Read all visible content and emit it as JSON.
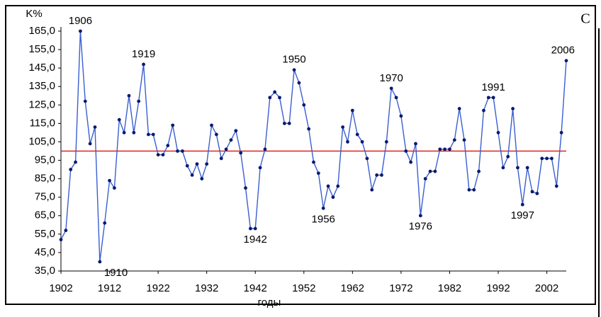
{
  "chart_data": {
    "type": "line",
    "panel_label": "C",
    "y_label": "K%",
    "x_label": "годы",
    "color": "#3a5fd0",
    "marker_color": "#0a1a6e",
    "reference_line": {
      "value": 100,
      "color": "#e02020"
    },
    "x": [
      1902,
      1903,
      1904,
      1905,
      1906,
      1907,
      1908,
      1909,
      1910,
      1911,
      1912,
      1913,
      1914,
      1915,
      1916,
      1917,
      1918,
      1919,
      1920,
      1921,
      1922,
      1923,
      1924,
      1925,
      1926,
      1927,
      1928,
      1929,
      1930,
      1931,
      1932,
      1933,
      1934,
      1935,
      1936,
      1937,
      1938,
      1939,
      1940,
      1941,
      1942,
      1943,
      1944,
      1945,
      1946,
      1947,
      1948,
      1949,
      1950,
      1951,
      1952,
      1953,
      1954,
      1955,
      1956,
      1957,
      1958,
      1959,
      1960,
      1961,
      1962,
      1963,
      1964,
      1965,
      1966,
      1967,
      1968,
      1969,
      1970,
      1971,
      1972,
      1973,
      1974,
      1975,
      1976,
      1977,
      1978,
      1979,
      1980,
      1981,
      1982,
      1983,
      1984,
      1985,
      1986,
      1987,
      1988,
      1989,
      1990,
      1991,
      1992,
      1993,
      1994,
      1995,
      1996,
      1997,
      1998,
      1999,
      2000,
      2001,
      2002,
      2003,
      2004,
      2005,
      2006
    ],
    "values": [
      52,
      57,
      90,
      94,
      165,
      127,
      104,
      113,
      40,
      61,
      84,
      80,
      117,
      110,
      130,
      110,
      127,
      147,
      109,
      109,
      98,
      98,
      103,
      114,
      100,
      100,
      92,
      87,
      93,
      85,
      93,
      114,
      109,
      96,
      101,
      106,
      111,
      99,
      80,
      58,
      58,
      91,
      101,
      129,
      132,
      129,
      115,
      115,
      144,
      137,
      125,
      112,
      94,
      88,
      69,
      81,
      75,
      81,
      113,
      105,
      122,
      109,
      105,
      96,
      79,
      87,
      87,
      105,
      134,
      129,
      119,
      100,
      94,
      104,
      65,
      85,
      89,
      89,
      101,
      101,
      101,
      106,
      123,
      106,
      79,
      79,
      89,
      122,
      129,
      129,
      110,
      91,
      97,
      123,
      91,
      71,
      91,
      78,
      77,
      96,
      96,
      96,
      81,
      110,
      149
    ],
    "annotations": [
      "1906",
      "1910",
      "1919",
      "1942",
      "1950",
      "1956",
      "1970",
      "1976",
      "1991",
      "1997",
      "2006"
    ],
    "xlim": [
      1902,
      2006
    ],
    "xticks": [
      1902,
      1912,
      1922,
      1932,
      1942,
      1952,
      1962,
      1972,
      1982,
      1992,
      2002
    ],
    "ylim": [
      35,
      165
    ],
    "yticks": [
      {
        "value": 35,
        "label": "35,0"
      },
      {
        "value": 45,
        "label": "45,0"
      },
      {
        "value": 55,
        "label": "55,0"
      },
      {
        "value": 65,
        "label": "65,0"
      },
      {
        "value": 75,
        "label": "75,0"
      },
      {
        "value": 85,
        "label": "85,0"
      },
      {
        "value": 95,
        "label": "95,0"
      },
      {
        "value": 105,
        "label": "105,0"
      },
      {
        "value": 115,
        "label": "115,0"
      },
      {
        "value": 125,
        "label": "125,0"
      },
      {
        "value": 135,
        "label": "135,0"
      },
      {
        "value": 145,
        "label": "145,0"
      },
      {
        "value": 155,
        "label": "155,0"
      },
      {
        "value": 165,
        "label": "165,0"
      }
    ],
    "grid": false
  }
}
